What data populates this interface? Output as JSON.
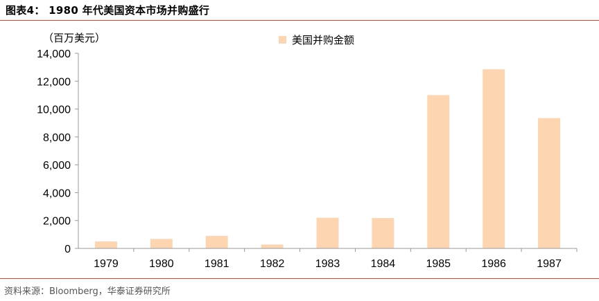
{
  "header": {
    "title": "图表4： 1980 年代美国资本市场并购盛行"
  },
  "footer": {
    "source": "资料来源：Bloomberg，华泰证券研究所"
  },
  "colors": {
    "bar": "#fdd5b1",
    "rule": "#e8402a",
    "axis": "#999999"
  },
  "chart_data": {
    "type": "bar",
    "unit_label": "（百万美元）",
    "categories": [
      "1979",
      "1980",
      "1981",
      "1982",
      "1983",
      "1984",
      "1985",
      "1986",
      "1987"
    ],
    "series": [
      {
        "name": "美国并购金额",
        "values": [
          500,
          680,
          900,
          280,
          2200,
          2180,
          11000,
          12850,
          9350
        ]
      }
    ],
    "ylim": [
      0,
      14000
    ],
    "yticks": [
      0,
      2000,
      4000,
      6000,
      8000,
      10000,
      12000,
      14000
    ],
    "ytick_labels": [
      "0",
      "2,000",
      "4,000",
      "6,000",
      "8,000",
      "10,000",
      "12,000",
      "14,000"
    ],
    "grid": false,
    "legend_position": "top-right"
  }
}
